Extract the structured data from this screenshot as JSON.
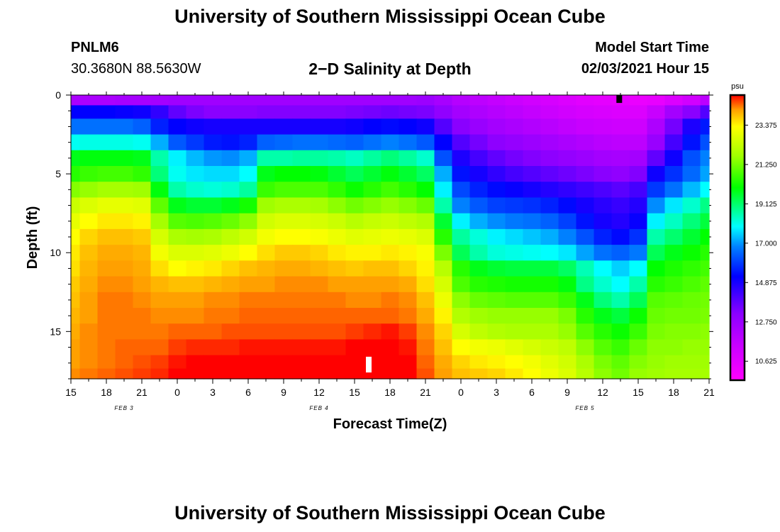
{
  "page": {
    "title_top": "University of Southern Mississippi Ocean Cube",
    "title_bottom": "University of Southern Mississippi Ocean Cube",
    "station_id": "PNLM6",
    "station_coords": "30.3680N 88.5630W",
    "subtitle": "2−D Salinity at Depth",
    "model_start_label": "Model Start Time",
    "model_start_value": "02/03/2021 Hour 15"
  },
  "colors": {
    "background": "#ffffff",
    "axis": "#000000",
    "marker_surface": "#000000",
    "marker_bottom": "#ffffff"
  },
  "chart_data": {
    "type": "heatmap",
    "title": "2−D Salinity at Depth",
    "xlabel": "Forecast Time(Z)",
    "ylabel": "Depth (ft)",
    "x_tick_labels": [
      "15",
      "18",
      "21",
      "0",
      "3",
      "6",
      "9",
      "12",
      "15",
      "18",
      "21",
      "0",
      "3",
      "6",
      "9",
      "12",
      "15",
      "18",
      "21"
    ],
    "x_tick_hours": [
      15,
      18,
      21,
      24,
      27,
      30,
      33,
      36,
      39,
      42,
      45,
      48,
      51,
      54,
      57,
      60,
      63,
      66,
      69
    ],
    "x_range_hours": [
      15,
      69
    ],
    "date_labels": [
      {
        "text": "FEB 3",
        "hour": 19.5
      },
      {
        "text": "FEB 4",
        "hour": 36
      },
      {
        "text": "FEB 5",
        "hour": 58.5
      }
    ],
    "y_tick_labels": [
      "0",
      "5",
      "10",
      "15"
    ],
    "y_tick_values": [
      0,
      5,
      10,
      15
    ],
    "y_range_ft": [
      0,
      18
    ],
    "y_inverted": true,
    "colorbar": {
      "unit": "psu",
      "tick_labels": [
        "23.375",
        "21.250",
        "19.125",
        "17.000",
        "14.875",
        "12.750",
        "10.625"
      ],
      "tick_values": [
        23.375,
        21.25,
        19.125,
        17.0,
        14.875,
        12.75,
        10.625
      ],
      "range": [
        9.6,
        25.0
      ],
      "stops": [
        {
          "v": 9.6,
          "c": "#ff00ff"
        },
        {
          "v": 11.5,
          "c": "#c800ff"
        },
        {
          "v": 13.2,
          "c": "#8a00ff"
        },
        {
          "v": 15.2,
          "c": "#0000ff"
        },
        {
          "v": 16.8,
          "c": "#0080ff"
        },
        {
          "v": 17.9,
          "c": "#00ffff"
        },
        {
          "v": 20.0,
          "c": "#00ff00"
        },
        {
          "v": 21.7,
          "c": "#a0ff00"
        },
        {
          "v": 23.3,
          "c": "#ffff00"
        },
        {
          "v": 24.2,
          "c": "#ffa000"
        },
        {
          "v": 25.0,
          "c": "#ff0000"
        }
      ]
    },
    "grid": {
      "time_hours": [
        15,
        16.5,
        18,
        19.5,
        21,
        22.5,
        24,
        25.5,
        27,
        28.5,
        30,
        31.5,
        33,
        34.5,
        36,
        37.5,
        39,
        40.5,
        42,
        43.5,
        45,
        46.5,
        48,
        49.5,
        51,
        52.5,
        54,
        55.5,
        57,
        58.5,
        60,
        61.5,
        63,
        64.5,
        66,
        67.5,
        69
      ],
      "depth_ft": [
        0.3,
        1,
        2,
        3,
        4,
        5,
        6,
        7,
        8,
        9,
        10,
        11,
        12,
        13,
        14,
        15,
        16,
        17,
        17.7
      ],
      "series": [
        {
          "depth": 0.3,
          "values": [
            12.3,
            12.3,
            12.3,
            12.4,
            12.4,
            12.5,
            12.6,
            12.6,
            12.6,
            12.6,
            12.6,
            12.6,
            12.6,
            12.6,
            12.6,
            12.6,
            12.6,
            12.6,
            12.6,
            12.6,
            12.7,
            12.4,
            12.0,
            11.8,
            11.6,
            11.4,
            11.2,
            11.0,
            10.8,
            10.6,
            10.5,
            10.4,
            10.3,
            10.4,
            10.8,
            11.2,
            11.8
          ]
        },
        {
          "depth": 1,
          "values": [
            15.2,
            15.2,
            15.2,
            15.1,
            15.0,
            14.5,
            13.8,
            13.4,
            13.2,
            13.2,
            13.2,
            13.3,
            13.3,
            13.3,
            13.3,
            13.3,
            13.4,
            13.5,
            13.6,
            13.5,
            13.4,
            13.0,
            12.5,
            12.2,
            12.0,
            11.8,
            11.6,
            11.4,
            11.2,
            11.0,
            10.9,
            10.8,
            10.8,
            11.5,
            12.5,
            13.2,
            14.0
          ]
        },
        {
          "depth": 2,
          "values": [
            16.6,
            16.6,
            16.6,
            16.6,
            16.4,
            15.6,
            15.2,
            15.0,
            14.9,
            14.9,
            14.9,
            14.9,
            14.9,
            14.9,
            14.9,
            14.9,
            15.0,
            15.2,
            15.3,
            15.2,
            15.0,
            14.0,
            13.2,
            12.8,
            12.5,
            12.3,
            12.1,
            11.9,
            11.7,
            11.5,
            11.4,
            11.3,
            11.3,
            12.2,
            13.5,
            14.8,
            15.5
          ]
        },
        {
          "depth": 3,
          "values": [
            18.0,
            18.1,
            18.1,
            18.1,
            18.0,
            17.2,
            16.3,
            15.9,
            15.5,
            15.4,
            15.6,
            16.4,
            16.5,
            16.6,
            16.6,
            16.5,
            16.4,
            16.6,
            16.8,
            16.6,
            16.3,
            15.2,
            14.0,
            13.5,
            13.1,
            12.9,
            12.7,
            12.5,
            12.3,
            12.1,
            11.9,
            11.8,
            11.8,
            12.8,
            14.2,
            15.4,
            16.2
          ]
        },
        {
          "depth": 4,
          "values": [
            19.8,
            19.9,
            19.9,
            19.9,
            19.8,
            18.6,
            17.8,
            17.3,
            17.0,
            16.9,
            17.2,
            18.6,
            18.6,
            18.7,
            18.7,
            18.6,
            18.4,
            18.7,
            19.0,
            18.7,
            18.3,
            16.2,
            14.8,
            14.2,
            13.8,
            13.5,
            13.3,
            13.1,
            12.9,
            12.7,
            12.5,
            12.4,
            12.5,
            13.8,
            15.0,
            16.2,
            16.8
          ]
        },
        {
          "depth": 5,
          "values": [
            20.4,
            20.6,
            20.7,
            20.7,
            20.5,
            19.0,
            18.0,
            17.7,
            17.6,
            17.6,
            17.9,
            19.8,
            20.0,
            20.0,
            19.9,
            19.6,
            19.3,
            19.6,
            19.9,
            19.6,
            19.2,
            17.2,
            15.4,
            14.9,
            14.5,
            14.2,
            14.0,
            13.8,
            13.6,
            13.4,
            13.2,
            13.0,
            13.3,
            15.0,
            15.8,
            16.5,
            17.1
          ]
        },
        {
          "depth": 6,
          "values": [
            21.4,
            21.6,
            21.8,
            21.8,
            21.7,
            19.9,
            18.6,
            18.3,
            18.2,
            18.3,
            18.7,
            20.6,
            20.8,
            20.8,
            20.8,
            20.5,
            20.1,
            20.4,
            20.7,
            20.4,
            20.0,
            17.8,
            16.1,
            15.6,
            15.3,
            15.1,
            14.9,
            14.7,
            14.5,
            14.3,
            14.1,
            13.9,
            14.2,
            15.9,
            16.6,
            17.3,
            17.9
          ]
        },
        {
          "depth": 7,
          "values": [
            22.4,
            22.7,
            22.9,
            22.9,
            22.8,
            21.0,
            19.8,
            19.6,
            19.6,
            19.8,
            20.2,
            21.7,
            21.9,
            21.9,
            21.8,
            21.5,
            21.2,
            21.4,
            21.6,
            21.4,
            21.1,
            18.6,
            16.8,
            16.3,
            16.0,
            15.9,
            15.8,
            15.6,
            15.3,
            14.9,
            14.6,
            14.4,
            14.7,
            16.9,
            17.7,
            18.3,
            18.9
          ]
        },
        {
          "depth": 8,
          "values": [
            22.9,
            23.3,
            23.5,
            23.5,
            23.4,
            21.8,
            20.9,
            20.8,
            20.9,
            21.1,
            21.5,
            22.5,
            22.7,
            22.7,
            22.6,
            22.4,
            22.1,
            22.3,
            22.4,
            22.2,
            22.0,
            19.6,
            17.8,
            17.2,
            16.9,
            16.7,
            16.6,
            16.4,
            16.0,
            15.4,
            14.9,
            14.7,
            15.1,
            17.8,
            18.4,
            19.0,
            19.5
          ]
        },
        {
          "depth": 9,
          "values": [
            23.3,
            23.7,
            23.9,
            23.9,
            23.8,
            22.6,
            21.9,
            21.8,
            21.9,
            22.2,
            22.5,
            23.1,
            23.3,
            23.3,
            23.2,
            23.0,
            22.8,
            22.9,
            23.0,
            22.9,
            22.7,
            20.4,
            18.7,
            18.2,
            17.8,
            17.6,
            17.4,
            17.2,
            16.8,
            16.2,
            15.6,
            15.3,
            15.8,
            18.6,
            19.1,
            19.6,
            20.0
          ]
        },
        {
          "depth": 10,
          "values": [
            23.5,
            23.9,
            24.1,
            24.1,
            24.0,
            23.1,
            22.7,
            22.7,
            22.8,
            23.0,
            23.3,
            23.6,
            23.8,
            23.8,
            23.7,
            23.5,
            23.4,
            23.4,
            23.5,
            23.4,
            23.2,
            21.3,
            19.3,
            18.6,
            18.2,
            18.1,
            18.0,
            17.9,
            17.7,
            17.1,
            16.6,
            16.4,
            16.7,
            19.3,
            19.8,
            20.1,
            20.4
          ]
        },
        {
          "depth": 11,
          "values": [
            23.6,
            24.0,
            24.2,
            24.2,
            24.1,
            23.6,
            23.3,
            23.4,
            23.5,
            23.7,
            23.9,
            24.0,
            24.1,
            24.1,
            24.0,
            23.9,
            23.8,
            23.9,
            23.9,
            23.7,
            23.4,
            22.1,
            20.4,
            19.8,
            19.6,
            19.5,
            19.5,
            19.5,
            19.2,
            18.5,
            17.9,
            17.5,
            17.9,
            20.0,
            20.3,
            20.5,
            20.7
          ]
        },
        {
          "depth": 12,
          "values": [
            23.8,
            24.1,
            24.3,
            24.3,
            24.2,
            24.0,
            23.9,
            23.9,
            24.0,
            24.1,
            24.2,
            24.2,
            24.3,
            24.3,
            24.3,
            24.2,
            24.2,
            24.2,
            24.2,
            24.1,
            23.6,
            22.6,
            20.8,
            20.4,
            20.3,
            20.2,
            20.2,
            20.2,
            19.9,
            18.9,
            18.3,
            17.9,
            18.6,
            20.4,
            20.6,
            20.8,
            21.0
          ]
        },
        {
          "depth": 13,
          "values": [
            23.9,
            24.2,
            24.4,
            24.4,
            24.3,
            24.2,
            24.2,
            24.2,
            24.3,
            24.3,
            24.4,
            24.4,
            24.4,
            24.4,
            24.4,
            24.4,
            24.3,
            24.3,
            24.4,
            24.3,
            23.9,
            23.0,
            21.5,
            21.1,
            21.0,
            20.9,
            20.9,
            20.9,
            20.6,
            19.8,
            19.0,
            18.6,
            19.3,
            20.9,
            21.0,
            21.1,
            21.2
          ]
        },
        {
          "depth": 14,
          "values": [
            24.0,
            24.2,
            24.4,
            24.4,
            24.4,
            24.3,
            24.3,
            24.3,
            24.4,
            24.4,
            24.5,
            24.5,
            24.5,
            24.5,
            24.5,
            24.5,
            24.5,
            24.5,
            24.5,
            24.4,
            24.1,
            23.4,
            22.0,
            21.7,
            21.6,
            21.6,
            21.6,
            21.6,
            21.3,
            20.4,
            19.8,
            19.5,
            20.1,
            21.1,
            21.2,
            21.2,
            21.3
          ]
        },
        {
          "depth": 15,
          "values": [
            24.1,
            24.3,
            24.4,
            24.4,
            24.4,
            24.4,
            24.5,
            24.5,
            24.5,
            24.6,
            24.6,
            24.6,
            24.6,
            24.6,
            24.6,
            24.6,
            24.7,
            24.8,
            24.9,
            24.7,
            24.3,
            23.7,
            22.6,
            22.2,
            22.0,
            21.9,
            21.9,
            21.9,
            21.6,
            20.9,
            20.4,
            20.1,
            20.6,
            21.3,
            21.4,
            21.4,
            21.5
          ]
        },
        {
          "depth": 16,
          "values": [
            24.2,
            24.3,
            24.4,
            24.5,
            24.5,
            24.5,
            24.7,
            24.8,
            24.8,
            24.8,
            24.9,
            24.9,
            24.9,
            24.9,
            24.9,
            24.9,
            25.0,
            25.1,
            25.1,
            24.9,
            24.4,
            23.9,
            23.3,
            23.1,
            23.0,
            22.8,
            22.6,
            22.4,
            22.2,
            21.5,
            20.9,
            20.6,
            21.1,
            21.5,
            21.5,
            21.6,
            21.6
          ]
        },
        {
          "depth": 17,
          "values": [
            24.2,
            24.3,
            24.4,
            24.5,
            24.6,
            24.7,
            24.9,
            25.0,
            25.0,
            25.0,
            25.1,
            25.1,
            25.1,
            25.1,
            25.1,
            25.1,
            25.2,
            25.3,
            25.3,
            25.1,
            24.5,
            24.1,
            23.7,
            23.5,
            23.4,
            23.3,
            23.1,
            22.8,
            22.5,
            21.9,
            21.3,
            21.0,
            21.4,
            21.6,
            21.7,
            21.7,
            21.7
          ]
        },
        {
          "depth": 17.7,
          "values": [
            24.3,
            24.4,
            24.5,
            24.6,
            24.7,
            24.8,
            25.0,
            25.1,
            25.1,
            25.1,
            25.2,
            25.2,
            25.2,
            25.2,
            25.2,
            25.2,
            25.3,
            25.4,
            25.4,
            25.2,
            24.6,
            24.2,
            23.9,
            23.8,
            23.7,
            23.5,
            23.3,
            23.0,
            22.7,
            22.1,
            21.5,
            21.2,
            21.6,
            21.7,
            21.8,
            21.8,
            21.8
          ]
        }
      ]
    },
    "markers": [
      {
        "name": "surface-observation-marker",
        "hour": 61.4,
        "depth_top": 0.0,
        "depth_bottom": 0.5,
        "color": "#000000"
      },
      {
        "name": "bottom-observation-marker",
        "hour": 40.2,
        "depth_top": 16.6,
        "depth_bottom": 17.6,
        "color": "#ffffff"
      }
    ]
  }
}
